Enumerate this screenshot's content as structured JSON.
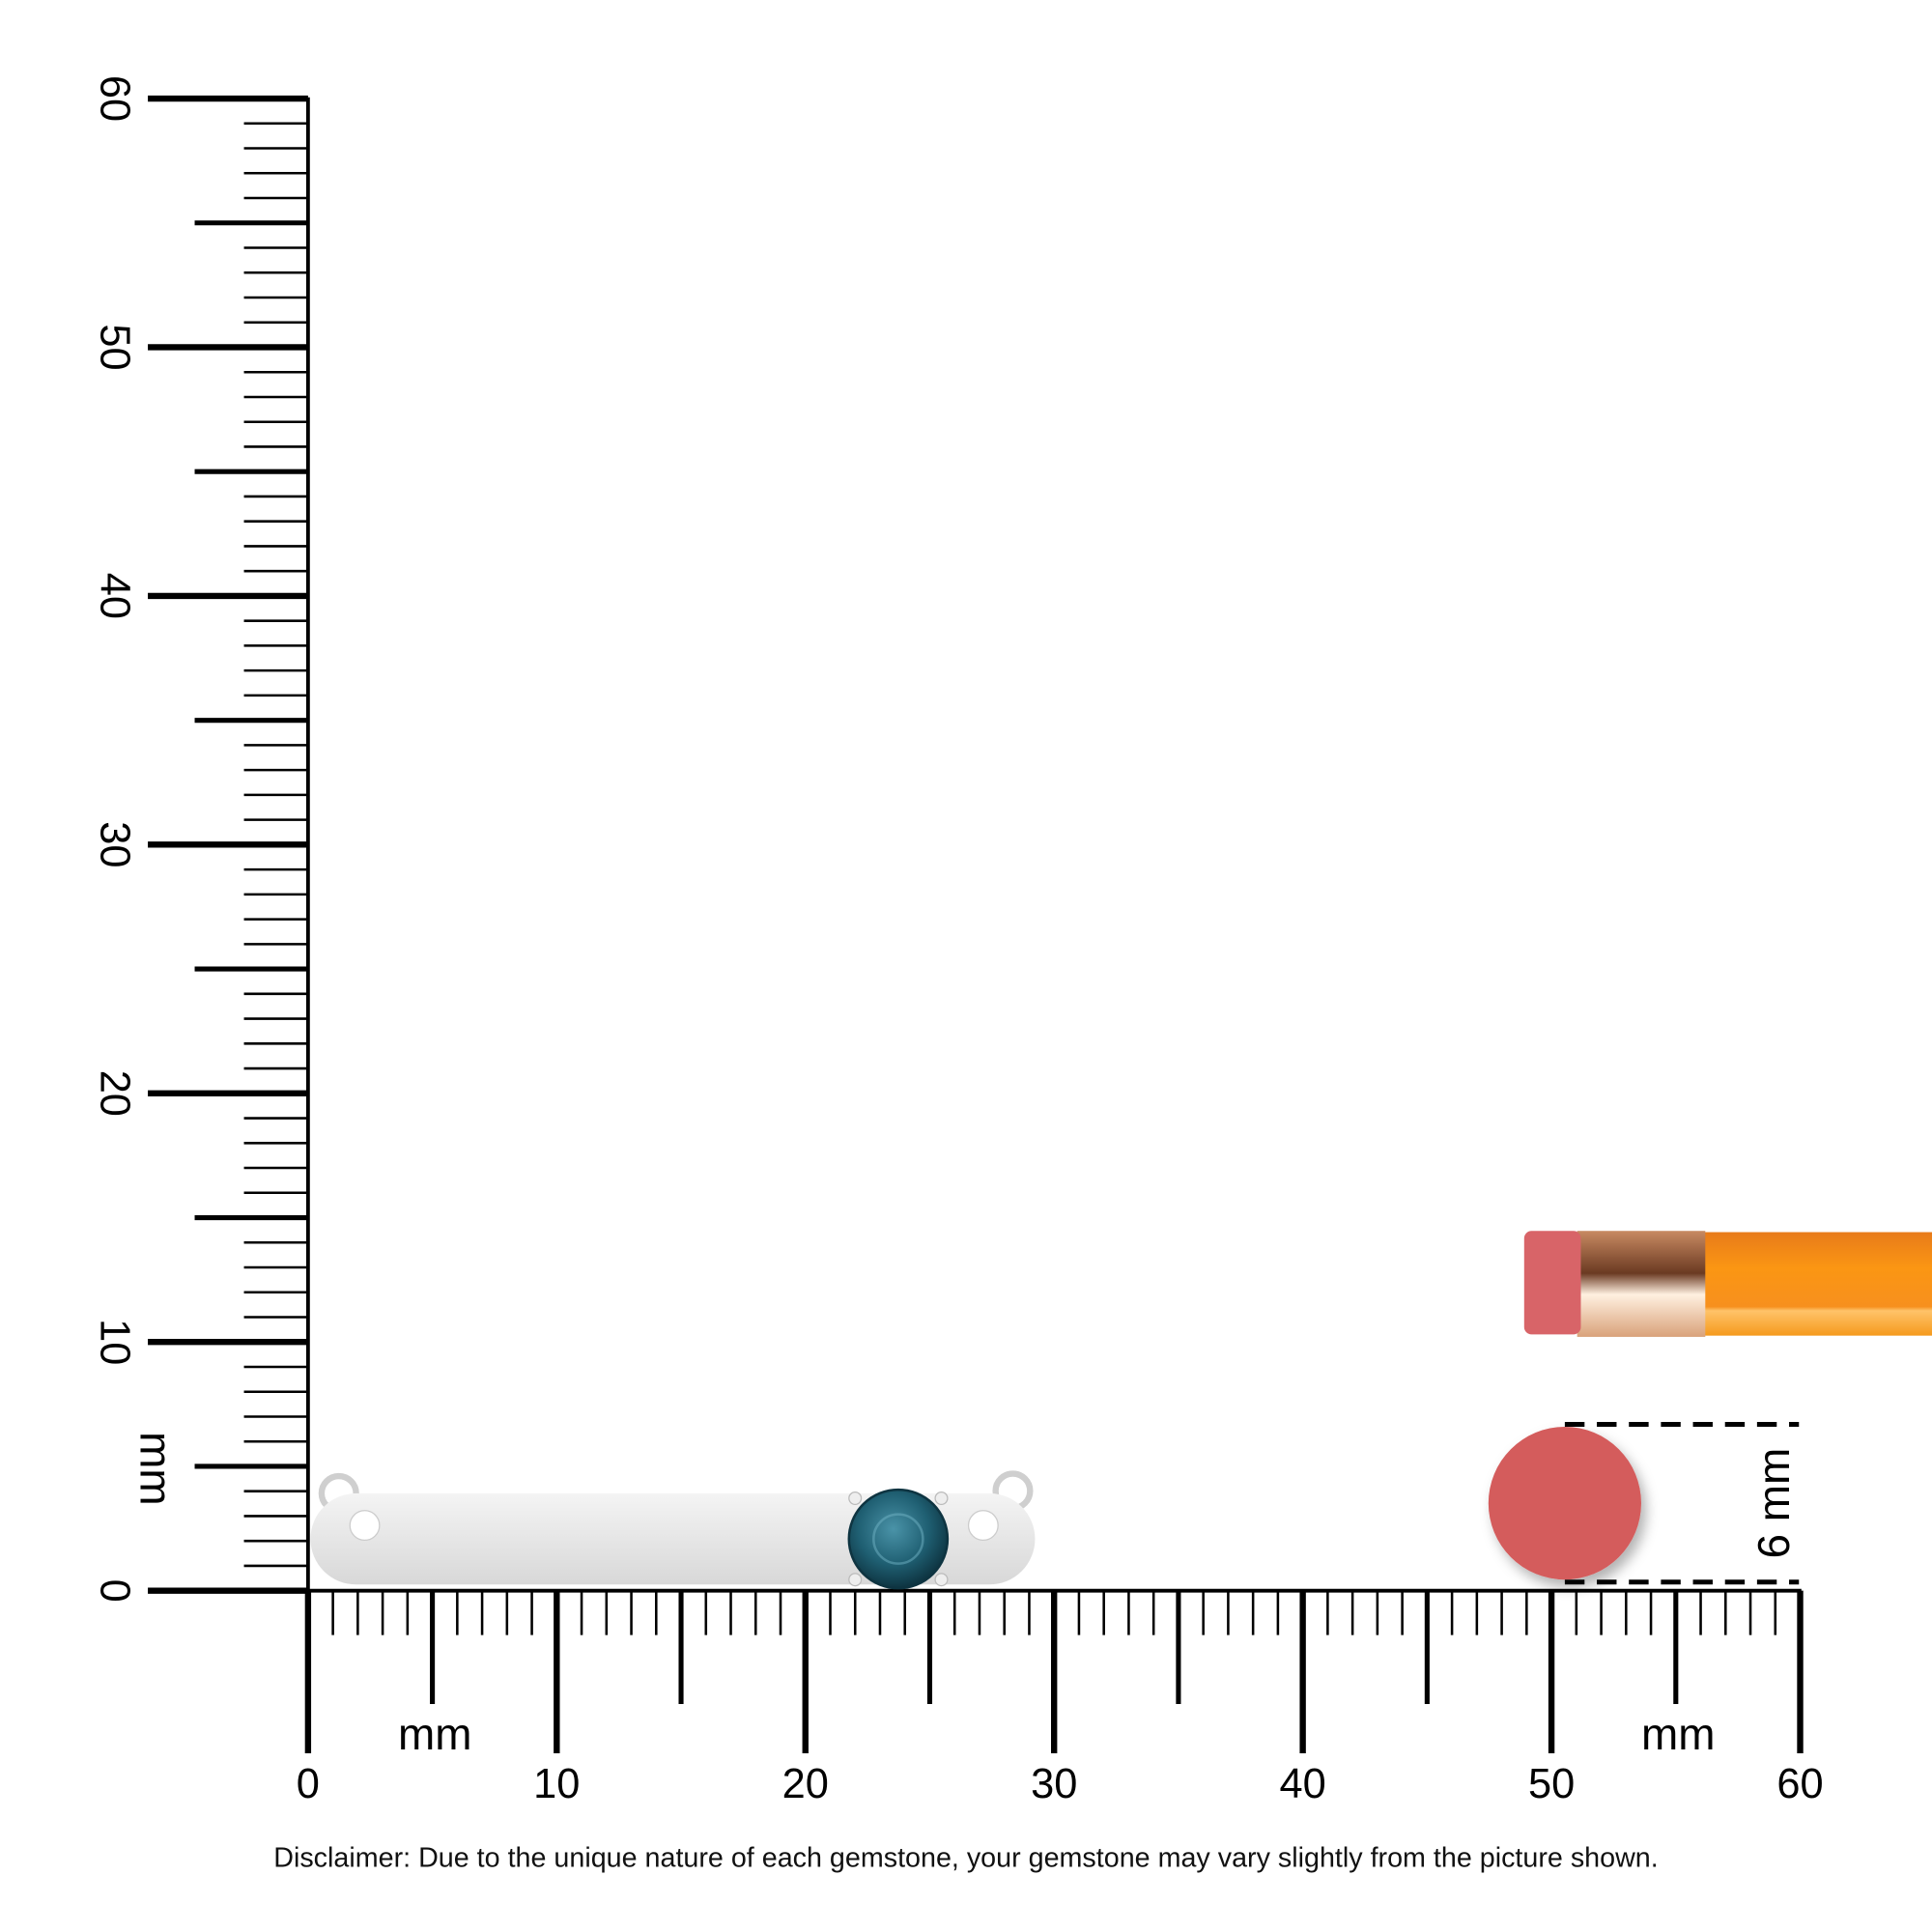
{
  "ruler": {
    "unit_label": "mm",
    "min": 0,
    "max": 60,
    "labels": [
      "0",
      "10",
      "20",
      "30",
      "40",
      "50",
      "60"
    ]
  },
  "eraser_size": {
    "label": "6 mm",
    "value_mm": 6
  },
  "product": {
    "gem_color": "#1f5f72",
    "metal_color": "#e4e4e4"
  },
  "colors": {
    "pencil": "#f7901e",
    "ferrule": "#d9a27a",
    "eraser": "#d45c5c"
  },
  "disclaimer": "Disclaimer: Due to the unique nature of each gemstone, your gemstone may vary slightly from the picture shown."
}
